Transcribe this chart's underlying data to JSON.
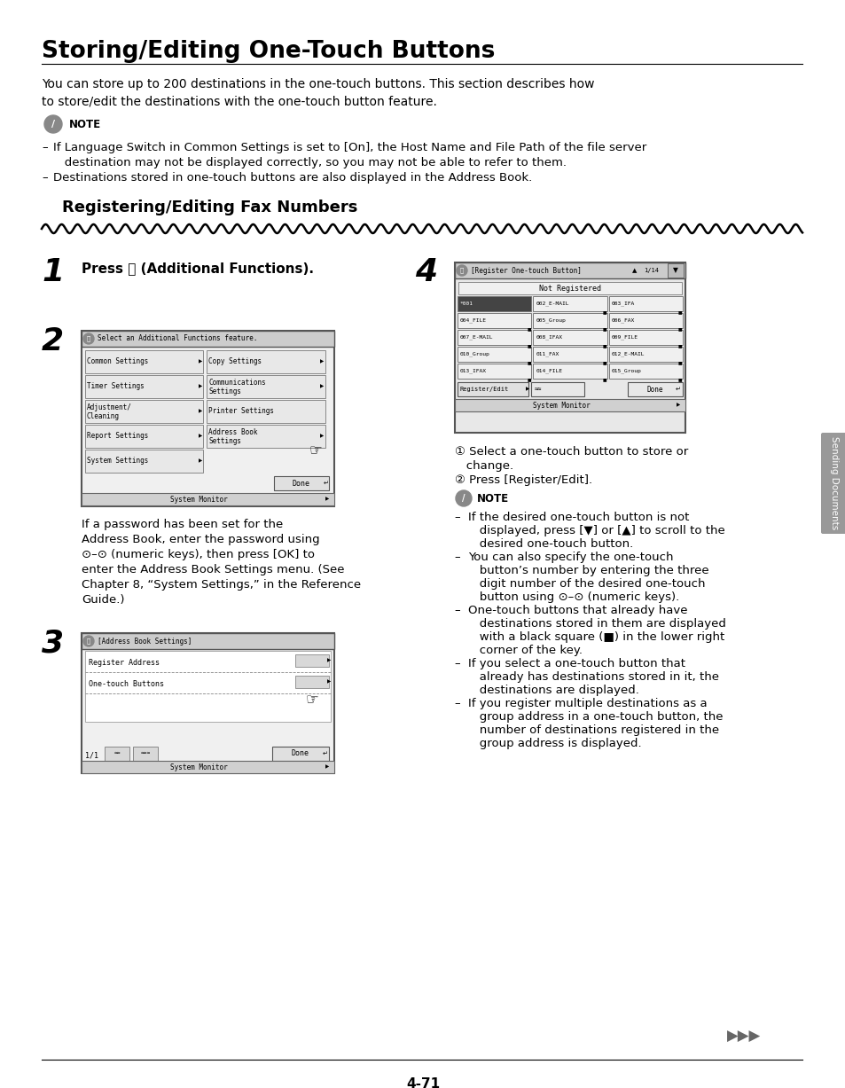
{
  "title": "Storing/Editing One-Touch Buttons",
  "intro_line1": "You can store up to 200 destinations in the one-touch buttons. This section describes how",
  "intro_line2": "to store/edit the destinations with the one-touch button feature.",
  "note_bullet1_line1": "If Language Switch in Common Settings is set to [On], the Host Name and File Path of the file server",
  "note_bullet1_line2": "   destination may not be displayed correctly, so you may not be able to refer to them.",
  "note_bullet2": "Destinations stored in one-touch buttons are also displayed in the Address Book.",
  "subsection_title": "Registering/Editing Fax Numbers",
  "step1_label": "1",
  "step1_text": "Press ⓨ (Additional Functions).",
  "step2_label": "2",
  "step3_label": "3",
  "step4_label": "4",
  "step2_caption_lines": [
    "If a password has been set for the",
    "Address Book, enter the password using",
    "⊙–⊙ (numeric keys), then press [OK] to",
    "enter the Address Book Settings menu. (See",
    "Chapter 8, “System Settings,” in the Reference",
    "Guide.)"
  ],
  "step4_sub1": "① Select a one-touch button to store or",
  "step4_sub1b": "   change.",
  "step4_sub2": "② Press [Register/Edit].",
  "step4_note_lines": [
    [
      "– ",
      "If the desired one-touch button is not"
    ],
    [
      "",
      "   displayed, press [▼] or [▲] to scroll to the"
    ],
    [
      "",
      "   desired one-touch button."
    ],
    [
      "– ",
      "You can also specify the one-touch"
    ],
    [
      "",
      "   button’s number by entering the three"
    ],
    [
      "",
      "   digit number of the desired one-touch"
    ],
    [
      "",
      "   button using ⊙–⊙ (numeric keys)."
    ],
    [
      "– ",
      "One-touch buttons that already have"
    ],
    [
      "",
      "   destinations stored in them are displayed"
    ],
    [
      "",
      "   with a black square (■) in the lower right"
    ],
    [
      "",
      "   corner of the key."
    ],
    [
      "– ",
      "If you select a one-touch button that"
    ],
    [
      "",
      "   already has destinations stored in it, the"
    ],
    [
      "",
      "   destinations are displayed."
    ],
    [
      "– ",
      "If you register multiple destinations as a"
    ],
    [
      "",
      "   group address in a one-touch button, the"
    ],
    [
      "",
      "   number of destinations registered in the"
    ],
    [
      "",
      "   group address is displayed."
    ]
  ],
  "sc2_menu_left": [
    "Common Settings",
    "Timer Settings",
    "Adjustment/\nCleaning",
    "Report Settings",
    "System Settings"
  ],
  "sc2_menu_right": [
    "Copy Settings",
    "Communications\nSettings",
    "Printer Settings",
    "Address Book\nSettings",
    ""
  ],
  "sc4_btn_labels": [
    [
      "*001",
      "002_E-MAIL",
      "003_IFA"
    ],
    [
      "004_FILE",
      "005_Group",
      "006_FAX"
    ],
    [
      "007_E-MAIL",
      "008_IFAX",
      "009_FILE"
    ],
    [
      "010_Group",
      "011_FAX",
      "012_E-MAIL"
    ],
    [
      "013_IFAX",
      "014_FILE",
      "015_Group"
    ]
  ],
  "page_number": "4-71",
  "sidebar_text": "Sending Documents",
  "bg_color": "#ffffff",
  "text_color": "#000000"
}
